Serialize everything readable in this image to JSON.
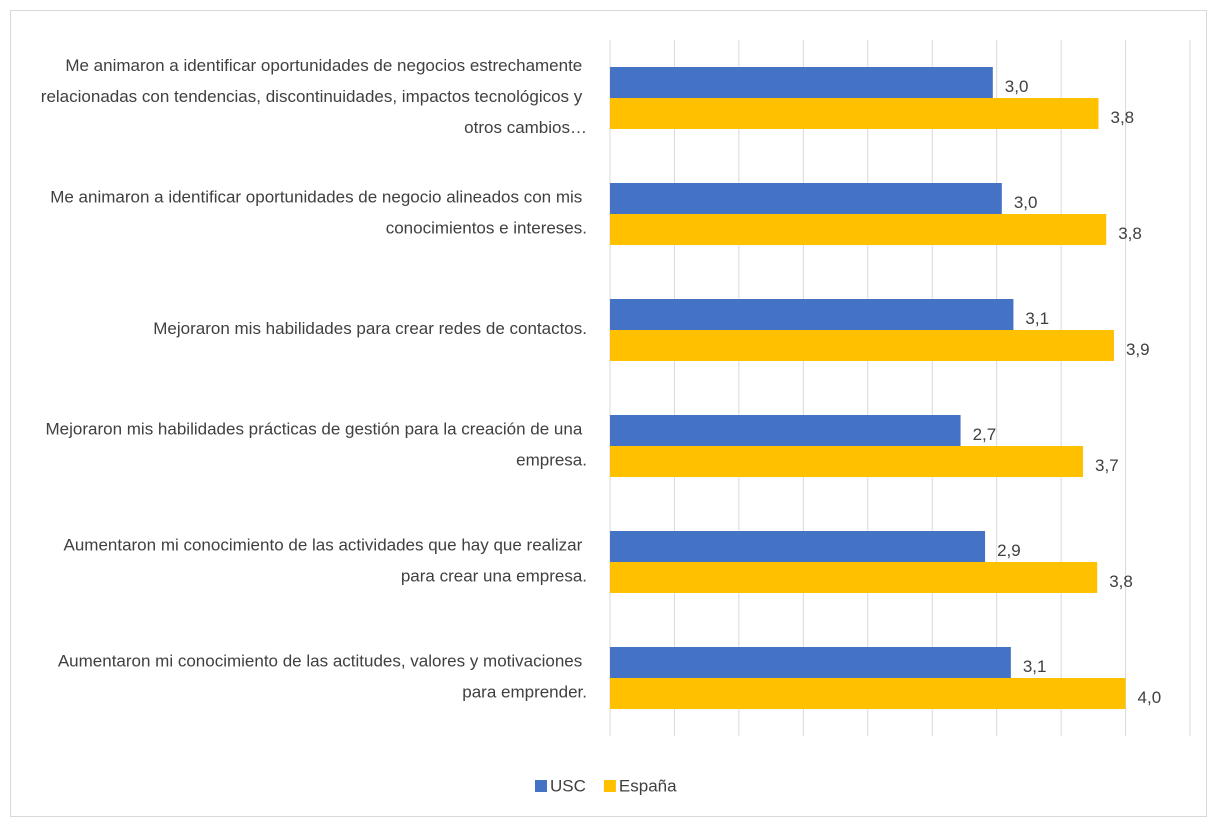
{
  "chart_data": {
    "type": "barh",
    "categories": [
      "Me animaron a identificar oportunidades de negocios estrechamente relacionadas con tendencias, discontinuidades, impactos tecnológicos y otros cambios…",
      "Me animaron a identificar oportunidades de negocio alineados con mis conocimientos e intereses.",
      "Mejoraron mis habilidades para crear redes de contactos.",
      "Mejoraron mis habilidades prácticas de gestión para la creación de una empresa.",
      "Aumentaron mi conocimiento de las actividades que hay que realizar para crear una empresa.",
      "Aumentaron mi conocimiento de las actitudes, valores y motivaciones para emprender."
    ],
    "series": [
      {
        "name": "USC",
        "color": "#4472c4",
        "values": [
          2.97,
          3.04,
          3.13,
          2.72,
          2.91,
          3.11
        ],
        "value_labels": [
          "3,0",
          "3,0",
          "3,1",
          "2,7",
          "2,9",
          "3,1"
        ]
      },
      {
        "name": "España",
        "color": "#ffc000",
        "values": [
          3.79,
          3.85,
          3.91,
          3.67,
          3.78,
          4.0
        ],
        "value_labels": [
          "3,8",
          "3,8",
          "3,9",
          "3,7",
          "3,8",
          "4,0"
        ]
      }
    ],
    "xlim": [
      0,
      4.5
    ],
    "xticks": [
      0,
      0.5,
      1,
      1.5,
      2,
      2.5,
      3,
      3.5,
      4,
      4.5
    ],
    "grid": true,
    "legend": "bottom"
  }
}
